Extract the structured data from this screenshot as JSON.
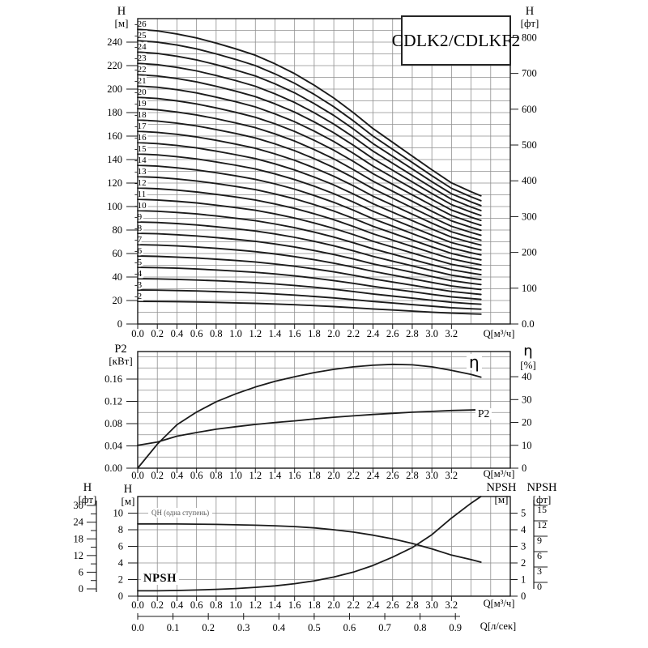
{
  "chart_data": [
    {
      "id": "head_flow",
      "type": "line",
      "title": "CDLK2/CDLKF2",
      "x_axis": {
        "label": "Q[м³/ч]",
        "min": 0,
        "max": 3.8,
        "grid_step": 0.2,
        "tick_labels": [
          "0.0",
          "0.2",
          "0.4",
          "0.6",
          "0.8",
          "1.0",
          "1.2",
          "1.4",
          "1.6",
          "1.8",
          "2.0",
          "2.2",
          "2.4",
          "2.6",
          "2.8",
          "3.0",
          "3.2"
        ]
      },
      "y_left": {
        "name": "H",
        "unit": "[м]",
        "min": 0,
        "max": 260,
        "grid_step": 10,
        "tick_values": [
          0,
          20,
          40,
          60,
          80,
          100,
          120,
          140,
          160,
          180,
          200,
          220,
          240
        ]
      },
      "y_right": {
        "name": "H",
        "unit": "[фт]",
        "meters_per_unit": 0.3048,
        "tick_values": [
          0,
          100,
          200,
          300,
          400,
          500,
          600,
          700,
          800
        ],
        "tick_labels": [
          "0.0",
          "100",
          "200",
          "300",
          "400",
          "500",
          "600",
          "700",
          "800"
        ]
      },
      "curves": {
        "label_prefix": "-",
        "stages": [
          2,
          3,
          4,
          5,
          6,
          7,
          8,
          9,
          10,
          11,
          12,
          13,
          14,
          15,
          16,
          17,
          18,
          19,
          20,
          21,
          22,
          23,
          24,
          25,
          26
        ],
        "q": [
          0,
          0.2,
          0.4,
          0.6,
          0.8,
          1.0,
          1.2,
          1.4,
          1.6,
          1.8,
          2.0,
          2.2,
          2.4,
          2.6,
          2.8,
          3.0,
          3.2,
          3.4,
          3.5
        ],
        "head_per_stage": [
          9.65,
          9.6,
          9.5,
          9.37,
          9.2,
          9.01,
          8.8,
          8.52,
          8.2,
          7.82,
          7.4,
          6.92,
          6.4,
          5.95,
          5.5,
          5.05,
          4.62,
          4.33,
          4.2
        ]
      }
    },
    {
      "id": "power_efficiency",
      "type": "line",
      "x_axis": {
        "label": "Q[м³/ч]",
        "min": 0,
        "max": 3.8,
        "grid_step": 0.2,
        "tick_labels": [
          "0.0",
          "0.2",
          "0.4",
          "0.6",
          "0.8",
          "1.0",
          "1.2",
          "1.4",
          "1.6",
          "1.8",
          "2.0",
          "2.2",
          "2.4",
          "2.6",
          "2.8",
          "3.0",
          "3.2"
        ]
      },
      "y_left": {
        "name": "P2",
        "unit": "[кВт]",
        "min": 0,
        "max": 0.2095,
        "grid_step": 0.02,
        "tick_values": [
          0,
          0.04,
          0.08,
          0.12,
          0.16
        ],
        "tick_labels": [
          "0.00",
          "0.04",
          "0.08",
          "0.12",
          "0.16"
        ]
      },
      "y_right": {
        "name": "η",
        "unit": "[%]",
        "min": 0,
        "max": 51,
        "tick_values": [
          0,
          10,
          20,
          30,
          40
        ]
      },
      "series": [
        {
          "name": "eta",
          "label": "η",
          "axis": "right",
          "q": [
            0,
            0.2,
            0.4,
            0.6,
            0.8,
            1.0,
            1.2,
            1.4,
            1.6,
            1.8,
            2.0,
            2.2,
            2.4,
            2.6,
            2.8,
            3.0,
            3.2,
            3.4,
            3.5
          ],
          "values": [
            0,
            10.5,
            19,
            24.5,
            29,
            32.5,
            35.5,
            38,
            40,
            41.8,
            43.2,
            44.3,
            45,
            45.4,
            45.2,
            44.3,
            42.8,
            41,
            39.8
          ]
        },
        {
          "name": "P2",
          "label": "P2",
          "axis": "left",
          "q": [
            0,
            0.2,
            0.4,
            0.6,
            0.8,
            1.0,
            1.2,
            1.4,
            1.6,
            1.8,
            2.0,
            2.2,
            2.4,
            2.6,
            2.8,
            3.0,
            3.2,
            3.4,
            3.5
          ],
          "values": [
            0.041,
            0.047,
            0.0575,
            0.064,
            0.07,
            0.0745,
            0.0785,
            0.082,
            0.085,
            0.0885,
            0.0915,
            0.094,
            0.0965,
            0.0985,
            0.1005,
            0.102,
            0.1035,
            0.1045,
            0.105
          ]
        }
      ]
    },
    {
      "id": "qh_npsh",
      "type": "line",
      "x_axis": {
        "label": "Q[м³/ч]",
        "min": 0,
        "max": 3.8,
        "grid_step": 0.2,
        "tick_labels": [
          "0.0",
          "0.2",
          "0.4",
          "0.6",
          "0.8",
          "1.0",
          "1.2",
          "1.4",
          "1.6",
          "1.8",
          "2.0",
          "2.2",
          "2.4",
          "2.6",
          "2.8",
          "3.0",
          "3.2"
        ],
        "secondary": {
          "label": "Q[л/сек]",
          "m3h_per_unit": 3.6,
          "tick_labels": [
            "0.0",
            "0.1",
            "0.2",
            "0.3",
            "0.4",
            "0.5",
            "0.6",
            "0.7",
            "0.8",
            "0.9"
          ]
        }
      },
      "y_left": {
        "name": "H",
        "unit": "[м]",
        "min": 0,
        "max": 12,
        "grid_step": 2,
        "tick_values": [
          0,
          2,
          4,
          6,
          8,
          10
        ]
      },
      "y_far_left": {
        "name": "H",
        "unit": "[фт]",
        "tick_values": [
          0,
          6,
          12,
          18,
          24,
          30
        ]
      },
      "y_right": {
        "name": "NPSH",
        "unit": "[м]",
        "min": 0,
        "max": 6,
        "tick_values": [
          0,
          1,
          2,
          3,
          4,
          5
        ]
      },
      "y_far_right": {
        "name": "NPSH",
        "unit": "[фт]",
        "tick_values": [
          0,
          3,
          6,
          9,
          12,
          15
        ]
      },
      "annotations": {
        "qh_legend": "QH (одна ступень)",
        "npsh_label": "NPSH"
      },
      "series": [
        {
          "name": "QH",
          "label": "QH (одна ступень)",
          "axis": "left",
          "q": [
            0,
            0.2,
            0.4,
            0.6,
            0.8,
            1.0,
            1.2,
            1.4,
            1.6,
            1.8,
            2.0,
            2.2,
            2.4,
            2.6,
            2.8,
            3.0,
            3.2,
            3.4,
            3.5
          ],
          "values": [
            8.7,
            8.7,
            8.69,
            8.67,
            8.64,
            8.6,
            8.55,
            8.48,
            8.38,
            8.22,
            8,
            7.72,
            7.35,
            6.9,
            6.35,
            5.7,
            4.95,
            4.4,
            4.1
          ]
        },
        {
          "name": "NPSH",
          "label": "NPSH",
          "axis": "right",
          "q": [
            0,
            0.2,
            0.4,
            0.6,
            0.8,
            1.0,
            1.2,
            1.4,
            1.6,
            1.8,
            2.0,
            2.2,
            2.4,
            2.6,
            2.8,
            3.0,
            3.2,
            3.4,
            3.5
          ],
          "values": [
            0.32,
            0.32,
            0.34,
            0.37,
            0.41,
            0.46,
            0.53,
            0.62,
            0.75,
            0.92,
            1.15,
            1.45,
            1.85,
            2.35,
            2.92,
            3.7,
            4.7,
            5.6,
            6.0
          ]
        }
      ]
    }
  ]
}
